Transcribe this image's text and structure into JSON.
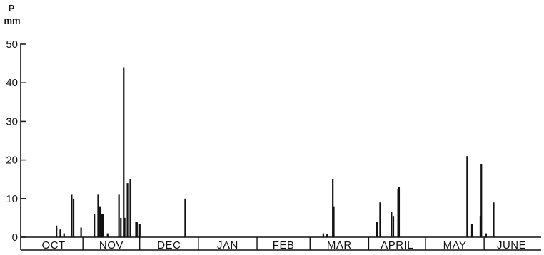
{
  "chart_data": {
    "type": "bar",
    "ylabel": "P",
    "yunit": "mm",
    "ylim": [
      0,
      50
    ],
    "yticks": [
      0,
      10,
      20,
      30,
      40,
      50
    ],
    "xlim_days": [
      0,
      272
    ],
    "months": [
      {
        "label": "OCT",
        "start": 0,
        "end": 31
      },
      {
        "label": "NOV",
        "start": 31,
        "end": 61
      },
      {
        "label": "DEC",
        "start": 61,
        "end": 92
      },
      {
        "label": "JAN",
        "start": 92,
        "end": 123
      },
      {
        "label": "FEB",
        "start": 123,
        "end": 151
      },
      {
        "label": "MAR",
        "start": 151,
        "end": 182
      },
      {
        "label": "APRIL",
        "start": 182,
        "end": 212
      },
      {
        "label": "MAY",
        "start": 212,
        "end": 243
      },
      {
        "label": "JUNE",
        "start": 243,
        "end": 272
      }
    ],
    "series": [
      {
        "values": [
          {
            "day": 17,
            "p": 3
          },
          {
            "day": 19,
            "p": 2
          },
          {
            "day": 21,
            "p": 1
          },
          {
            "day": 25,
            "p": 11
          },
          {
            "day": 26,
            "p": 10
          },
          {
            "day": 30,
            "p": 2.5
          },
          {
            "day": 37,
            "p": 6
          },
          {
            "day": 39,
            "p": 11
          },
          {
            "day": 40,
            "p": 8
          },
          {
            "day": 41,
            "p": 6
          },
          {
            "day": 41.5,
            "p": 6
          },
          {
            "day": 44,
            "p": 1
          },
          {
            "day": 50,
            "p": 11
          },
          {
            "day": 51,
            "p": 5
          },
          {
            "day": 52.5,
            "p": 44
          },
          {
            "day": 53,
            "p": 5
          },
          {
            "day": 54.5,
            "p": 14
          },
          {
            "day": 56,
            "p": 15
          },
          {
            "day": 59,
            "p": 4
          },
          {
            "day": 59.5,
            "p": 4
          },
          {
            "day": 61,
            "p": 3.5
          },
          {
            "day": 85,
            "p": 10
          },
          {
            "day": 158,
            "p": 1
          },
          {
            "day": 160,
            "p": 0.8
          },
          {
            "day": 163,
            "p": 15
          },
          {
            "day": 163.5,
            "p": 8
          },
          {
            "day": 186,
            "p": 4
          },
          {
            "day": 186.5,
            "p": 4
          },
          {
            "day": 188,
            "p": 9
          },
          {
            "day": 194,
            "p": 6.5
          },
          {
            "day": 195,
            "p": 5.5
          },
          {
            "day": 197.5,
            "p": 12.5
          },
          {
            "day": 198,
            "p": 13
          },
          {
            "day": 234,
            "p": 21
          },
          {
            "day": 236.5,
            "p": 3.5
          },
          {
            "day": 241,
            "p": 5.5
          },
          {
            "day": 241.5,
            "p": 19
          },
          {
            "day": 244,
            "p": 1
          },
          {
            "day": 248,
            "p": 9
          }
        ]
      }
    ]
  }
}
